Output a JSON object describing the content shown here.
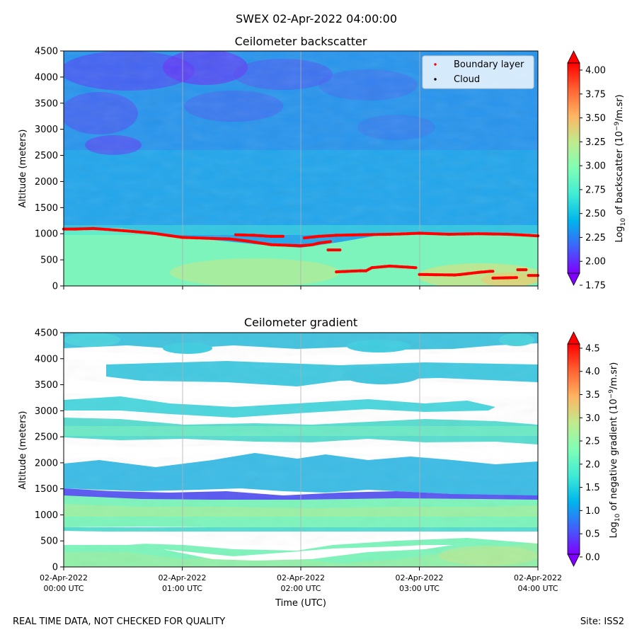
{
  "figure": {
    "suptitle": "SWEX 02-Apr-2022 04:00:00",
    "footer_left": "REAL TIME DATA, NOT CHECKED FOR QUALITY",
    "footer_right": "Site: ISS2"
  },
  "chart_data": [
    {
      "type": "heatmap",
      "title": "Ceilometer backscatter",
      "xlabel": "",
      "ylabel": "Altitude (meters)",
      "ylim": [
        0,
        4500
      ],
      "yticks": [
        0,
        500,
        1000,
        1500,
        2000,
        2500,
        3000,
        3500,
        4000,
        4500
      ],
      "xlim_hours": [
        0,
        4
      ],
      "grid": "vertical",
      "colorbar": {
        "label": "Log10 of backscatter (10^-9/m.sr)",
        "label_parts": {
          "pre": "Log",
          "sub": "10",
          "mid": " of backscatter (10",
          "sup": "−9",
          "post": "/m.sr)"
        },
        "min": 1.75,
        "max": 4.2,
        "ticks": [
          "1.75",
          "2.00",
          "2.25",
          "2.50",
          "2.75",
          "3.00",
          "3.25",
          "3.50",
          "3.75",
          "4.00"
        ],
        "colormap": "rainbow",
        "extend": "both"
      },
      "legend": {
        "placement": "upper right",
        "entries": [
          {
            "label": "Boundary layer",
            "color": "#ff0000"
          },
          {
            "label": "Cloud",
            "color": "#000000"
          }
        ]
      },
      "regions_described": [
        {
          "altitude_range_m": [
            0,
            900
          ],
          "approx_value": 2.9
        },
        {
          "altitude_range_m": [
            1000,
            2600
          ],
          "approx_value": 2.45
        },
        {
          "altitude_range_m": [
            2600,
            4500
          ],
          "approx_value": 2.2
        }
      ],
      "boundary_layer_segments": [
        [
          [
            0.0,
            1090
          ],
          [
            0.1,
            1090
          ],
          [
            0.25,
            1100
          ],
          [
            0.5,
            1060
          ],
          [
            0.75,
            1010
          ],
          [
            1.0,
            930
          ],
          [
            1.25,
            910
          ],
          [
            1.4,
            900
          ],
          [
            1.55,
            860
          ],
          [
            1.75,
            790
          ],
          [
            2.0,
            770
          ],
          [
            2.1,
            790
          ],
          [
            2.15,
            820
          ],
          [
            2.25,
            850
          ]
        ],
        [
          [
            1.45,
            980
          ],
          [
            1.6,
            970
          ],
          [
            1.75,
            950
          ],
          [
            1.85,
            950
          ]
        ],
        [
          [
            2.03,
            920
          ],
          [
            2.15,
            950
          ],
          [
            2.3,
            970
          ],
          [
            2.5,
            980
          ],
          [
            2.75,
            990
          ],
          [
            2.9,
            1000
          ],
          [
            3.0,
            1010
          ],
          [
            3.25,
            990
          ],
          [
            3.5,
            1000
          ],
          [
            3.75,
            990
          ],
          [
            4.0,
            960
          ]
        ],
        [
          [
            2.23,
            690
          ],
          [
            2.33,
            690
          ]
        ],
        [
          [
            2.3,
            270
          ],
          [
            2.5,
            290
          ],
          [
            2.55,
            290
          ],
          [
            2.6,
            350
          ],
          [
            2.75,
            380
          ],
          [
            2.9,
            360
          ],
          [
            2.97,
            350
          ]
        ],
        [
          [
            3.0,
            220
          ],
          [
            3.3,
            210
          ],
          [
            3.35,
            220
          ],
          [
            3.5,
            260
          ],
          [
            3.6,
            280
          ],
          [
            3.62,
            280
          ]
        ],
        [
          [
            3.62,
            150
          ],
          [
            3.82,
            160
          ]
        ],
        [
          [
            3.83,
            310
          ],
          [
            3.9,
            310
          ]
        ],
        [
          [
            3.92,
            200
          ],
          [
            4.0,
            200
          ]
        ]
      ]
    },
    {
      "type": "heatmap",
      "title": "Ceilometer gradient",
      "xlabel": "Time (UTC)",
      "ylabel": "Altitude (meters)",
      "ylim": [
        0,
        4500
      ],
      "yticks": [
        0,
        500,
        1000,
        1500,
        2000,
        2500,
        3000,
        3500,
        4000,
        4500
      ],
      "xticks": [
        {
          "hour": 0,
          "line1": "02-Apr-2022",
          "line2": "00:00 UTC"
        },
        {
          "hour": 1,
          "line1": "02-Apr-2022",
          "line2": "01:00 UTC"
        },
        {
          "hour": 2,
          "line1": "02-Apr-2022",
          "line2": "02:00 UTC"
        },
        {
          "hour": 3,
          "line1": "02-Apr-2022",
          "line2": "03:00 UTC"
        },
        {
          "hour": 4,
          "line1": "02-Apr-2022",
          "line2": "04:00 UTC"
        }
      ],
      "grid": "vertical",
      "colorbar": {
        "label": "Log10 of negative gradient (10^-9/m.sr)",
        "label_parts": {
          "pre": "Log",
          "sub": "10",
          "mid": " of negative gradient (10",
          "sup": "−9",
          "post": "/m.sr)"
        },
        "min": -0.2,
        "max": 4.85,
        "ticks": [
          "0.0",
          "0.5",
          "1.0",
          "1.5",
          "2.0",
          "2.5",
          "3.0",
          "3.5",
          "4.0",
          "4.5"
        ],
        "colormap": "rainbow",
        "extend": "both"
      },
      "bands_described": [
        {
          "altitude_range_m": [
            150,
            450
          ],
          "approx_value": 2.3
        },
        {
          "altitude_range_m": [
            750,
            1400
          ],
          "approx_value": 2.5
        },
        {
          "altitude_range_m": [
            1450,
            2100
          ],
          "approx_value": 1.5
        },
        {
          "altitude_range_m": [
            2350,
            2850
          ],
          "approx_value": 1.7
        },
        {
          "altitude_range_m": [
            3150,
            3550
          ],
          "approx_value": 1.6
        },
        {
          "altitude_range_m": [
            3700,
            4050
          ],
          "approx_value": 1.6
        },
        {
          "altitude_range_m": [
            4150,
            4450
          ],
          "approx_value": 1.6
        }
      ]
    }
  ]
}
